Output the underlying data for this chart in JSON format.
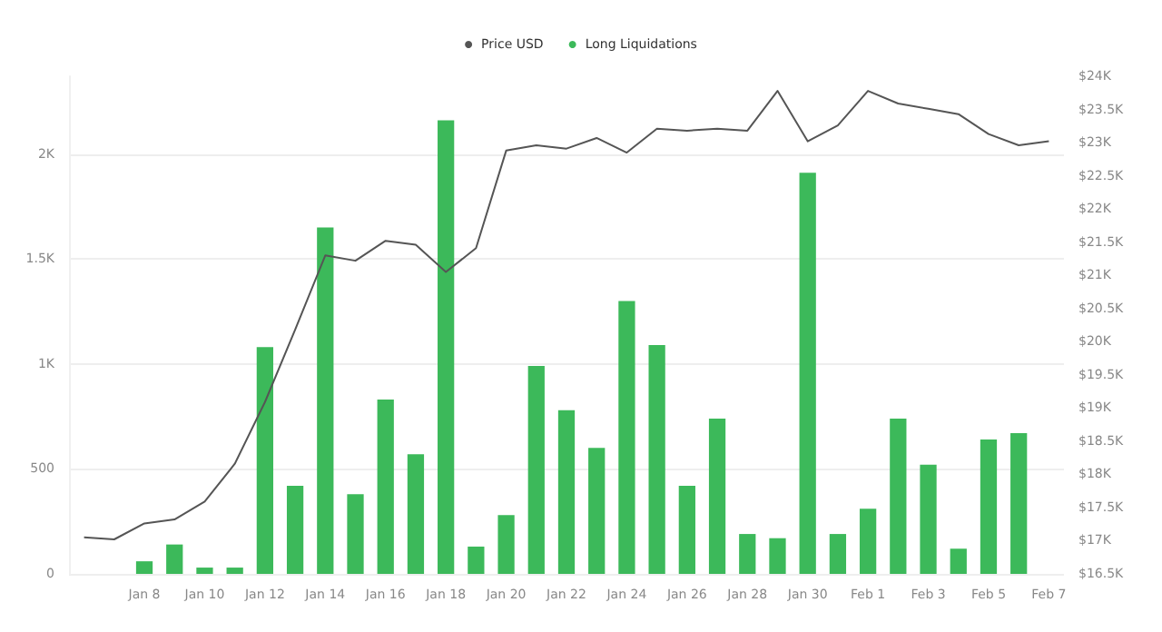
{
  "chart_data": {
    "type": "bar",
    "categories": [
      null,
      null,
      "Jan 8",
      null,
      "Jan 10",
      null,
      "Jan 12",
      null,
      "Jan 14",
      null,
      "Jan 16",
      null,
      "Jan 18",
      null,
      "Jan 20",
      null,
      "Jan 22",
      null,
      "Jan 24",
      null,
      "Jan 26",
      null,
      "Jan 28",
      null,
      "Jan 30",
      null,
      "Feb 1",
      null,
      "Feb 3",
      null,
      "Feb 5",
      null,
      "Feb 7"
    ],
    "series": [
      {
        "name": "Price USD",
        "type": "line",
        "axis": "y2",
        "color": "#555555",
        "values": [
          17050,
          17020,
          17260,
          17320,
          17590,
          18160,
          19090,
          20180,
          21300,
          21220,
          21520,
          21460,
          21050,
          21410,
          22880,
          22960,
          22910,
          23070,
          22850,
          23210,
          23180,
          23210,
          23180,
          23780,
          23020,
          23260,
          23780,
          23590,
          23510,
          23430,
          23130,
          22960,
          23020
        ]
      },
      {
        "name": "Long Liquidations",
        "color": "#3cb95a",
        "values": [
          null,
          null,
          60,
          140,
          30,
          30,
          1080,
          420,
          1650,
          380,
          830,
          570,
          2160,
          130,
          280,
          990,
          780,
          600,
          1300,
          1090,
          420,
          740,
          190,
          170,
          1910,
          190,
          310,
          740,
          520,
          120,
          640,
          670,
          null
        ]
      }
    ],
    "ylim": [
      0,
      2370
    ],
    "yticks": [
      {
        "value": 0,
        "label": "0"
      },
      {
        "value": 500,
        "label": "500"
      },
      {
        "value": 1000,
        "label": "1K"
      },
      {
        "value": 1500,
        "label": "1.5K"
      },
      {
        "value": 2000,
        "label": "2K"
      }
    ],
    "y2lim": [
      16500,
      24000
    ],
    "y2ticks": [
      {
        "value": 16500,
        "label": "$16.5K"
      },
      {
        "value": 17000,
        "label": "$17K"
      },
      {
        "value": 17500,
        "label": "$17.5K"
      },
      {
        "value": 18000,
        "label": "$18K"
      },
      {
        "value": 18500,
        "label": "$18.5K"
      },
      {
        "value": 19000,
        "label": "$19K"
      },
      {
        "value": 19500,
        "label": "$19.5K"
      },
      {
        "value": 20000,
        "label": "$20K"
      },
      {
        "value": 20500,
        "label": "$20.5K"
      },
      {
        "value": 21000,
        "label": "$21K"
      },
      {
        "value": 21500,
        "label": "$21.5K"
      },
      {
        "value": 22000,
        "label": "$22K"
      },
      {
        "value": 22500,
        "label": "$22.5K"
      },
      {
        "value": 23000,
        "label": "$23K"
      },
      {
        "value": 23500,
        "label": "$23.5K"
      },
      {
        "value": 24000,
        "label": "$24K"
      }
    ],
    "grid": "y",
    "legend": "top",
    "marker": "none"
  }
}
